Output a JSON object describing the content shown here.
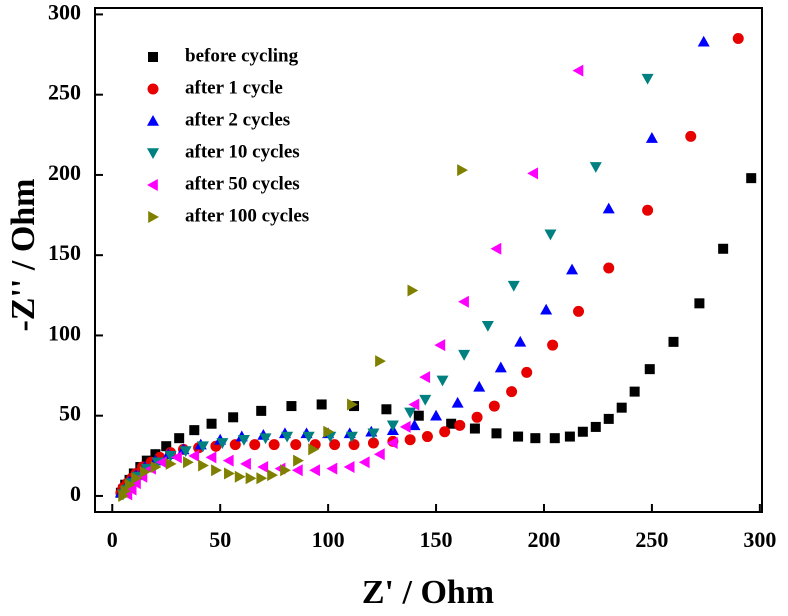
{
  "chart_data": {
    "type": "scatter",
    "xlabel": "Z' / Ohm",
    "ylabel": "-Z'' / Ohm",
    "xlim": [
      -8,
      301
    ],
    "ylim": [
      -10,
      304
    ],
    "xticks": [
      0,
      50,
      100,
      150,
      200,
      250,
      300
    ],
    "yticks": [
      0,
      50,
      100,
      150,
      200,
      250,
      300
    ],
    "grid": false,
    "legend": "upper left",
    "series": [
      {
        "name": "before cycling",
        "color": "#000000",
        "marker": "square",
        "x": [
          4,
          5,
          6,
          8,
          10,
          13,
          16,
          20,
          25,
          31,
          38,
          46,
          56,
          69,
          83,
          97,
          112,
          127,
          142,
          157,
          168,
          178,
          188,
          196,
          205,
          212,
          218,
          224,
          230,
          236,
          242,
          249,
          260,
          272,
          283,
          296
        ],
        "values": [
          2,
          4,
          7,
          10,
          14,
          18,
          22,
          26,
          31,
          36,
          41,
          45,
          49,
          53,
          56,
          57,
          56,
          54,
          50,
          45,
          42,
          39,
          37,
          36,
          36,
          37,
          40,
          43,
          48,
          55,
          65,
          79,
          96,
          120,
          154,
          198
        ]
      },
      {
        "name": "after 1 cycle",
        "color": "#e60000",
        "marker": "circle",
        "x": [
          4,
          5,
          7,
          9,
          11,
          14,
          18,
          22,
          27,
          33,
          40,
          48,
          57,
          66,
          75,
          85,
          94,
          103,
          112,
          121,
          130,
          138,
          146,
          154,
          161,
          169,
          177,
          185,
          192,
          204,
          216,
          230,
          248,
          268,
          290
        ],
        "values": [
          2,
          5,
          8,
          11,
          14,
          18,
          21,
          24,
          27,
          29,
          30,
          31,
          32,
          32,
          32,
          32,
          32,
          32,
          32,
          33,
          34,
          35,
          37,
          40,
          44,
          49,
          56,
          65,
          77,
          94,
          115,
          142,
          178,
          224,
          285
        ]
      },
      {
        "name": "after 2 cycles",
        "color": "#0000ff",
        "marker": "triangle-up",
        "x": [
          4,
          6,
          8,
          11,
          15,
          20,
          26,
          33,
          41,
          50,
          60,
          70,
          80,
          90,
          100,
          110,
          120,
          130,
          140,
          150,
          160,
          170,
          180,
          189,
          201,
          213,
          230,
          250,
          274
        ],
        "values": [
          2,
          5,
          9,
          13,
          18,
          22,
          26,
          29,
          32,
          35,
          37,
          38,
          39,
          39,
          39,
          39,
          40,
          41,
          44,
          50,
          58,
          68,
          80,
          96,
          116,
          141,
          179,
          223,
          283
        ]
      },
      {
        "name": "after 10 cycles",
        "color": "#008080",
        "marker": "triangle-down",
        "x": [
          5,
          7,
          9,
          12,
          16,
          21,
          27,
          34,
          42,
          51,
          61,
          71,
          81,
          91,
          101,
          111,
          121,
          130,
          138,
          145,
          153,
          163,
          174,
          186,
          203,
          224,
          248
        ],
        "values": [
          1,
          4,
          8,
          12,
          17,
          21,
          25,
          28,
          31,
          33,
          35,
          36,
          37,
          37,
          37,
          37,
          39,
          44,
          52,
          60,
          72,
          88,
          106,
          131,
          163,
          205,
          260
        ]
      },
      {
        "name": "after 50 cycles",
        "color": "#ff00ff",
        "marker": "triangle-left",
        "x": [
          7,
          9,
          11,
          14,
          18,
          23,
          30,
          38,
          46,
          54,
          62,
          70,
          78,
          86,
          94,
          102,
          110,
          117,
          124,
          130,
          136,
          140,
          145,
          152,
          163,
          178,
          195,
          216
        ],
        "values": [
          1,
          4,
          8,
          12,
          17,
          21,
          24,
          25,
          24,
          22,
          20,
          18,
          17,
          16,
          16,
          17,
          18,
          21,
          26,
          33,
          43,
          57,
          74,
          94,
          121,
          154,
          201,
          265
        ]
      },
      {
        "name": "after 100 cycles",
        "color": "#808000",
        "marker": "triangle-right",
        "x": [
          5,
          6,
          8,
          11,
          15,
          20,
          27,
          35,
          42,
          48,
          54,
          59,
          64,
          69,
          74,
          80,
          86,
          93,
          100,
          111,
          124,
          139,
          162
        ],
        "values": [
          0,
          3,
          7,
          11,
          15,
          18,
          20,
          21,
          19,
          16,
          14,
          12,
          11,
          11,
          13,
          16,
          22,
          29,
          40,
          57,
          84,
          128,
          203
        ]
      }
    ]
  }
}
